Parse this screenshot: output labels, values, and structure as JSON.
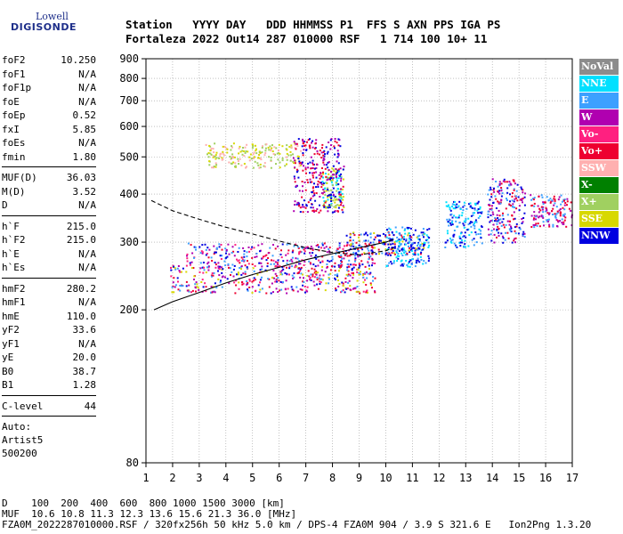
{
  "logo": {
    "line1": "Lowell",
    "line2": "DIGISONDE"
  },
  "header": {
    "labels": "Station   YYYY DAY   DDD HHMMSS P1  FFS S AXN PPS IGA PS",
    "values": "Fortaleza 2022 Out14 287 010000 RSF   1 714 100 10+ 11"
  },
  "params": [
    {
      "type": "row",
      "name": "foF2",
      "value": "10.250"
    },
    {
      "type": "row",
      "name": "foF1",
      "value": "N/A"
    },
    {
      "type": "row",
      "name": "foF1p",
      "value": "N/A"
    },
    {
      "type": "row",
      "name": "foE",
      "value": "N/A"
    },
    {
      "type": "row",
      "name": "foEp",
      "value": "0.52"
    },
    {
      "type": "row",
      "name": "fxI",
      "value": "5.85"
    },
    {
      "type": "row",
      "name": "foEs",
      "value": "N/A"
    },
    {
      "type": "row",
      "name": "fmin",
      "value": "1.80"
    },
    {
      "type": "sep"
    },
    {
      "type": "row",
      "name": "MUF(D)",
      "value": "36.03"
    },
    {
      "type": "row",
      "name": "M(D)",
      "value": "3.52"
    },
    {
      "type": "row",
      "name": "D",
      "value": "N/A"
    },
    {
      "type": "sep"
    },
    {
      "type": "row",
      "name": "h`F",
      "value": "215.0"
    },
    {
      "type": "row",
      "name": "h`F2",
      "value": "215.0"
    },
    {
      "type": "row",
      "name": "h`E",
      "value": "N/A"
    },
    {
      "type": "row",
      "name": "h`Es",
      "value": "N/A"
    },
    {
      "type": "sep"
    },
    {
      "type": "row",
      "name": "hmF2",
      "value": "280.2"
    },
    {
      "type": "row",
      "name": "hmF1",
      "value": "N/A"
    },
    {
      "type": "row",
      "name": "hmE",
      "value": "110.0"
    },
    {
      "type": "row",
      "name": "yF2",
      "value": "33.6"
    },
    {
      "type": "row",
      "name": "yF1",
      "value": "N/A"
    },
    {
      "type": "row",
      "name": "yE",
      "value": "20.0"
    },
    {
      "type": "row",
      "name": "B0",
      "value": "38.7"
    },
    {
      "type": "row",
      "name": "B1",
      "value": "1.28"
    },
    {
      "type": "sep"
    },
    {
      "type": "row",
      "name": "C-level",
      "value": "44"
    },
    {
      "type": "sep"
    },
    {
      "type": "text",
      "value": "Auto:"
    },
    {
      "type": "text",
      "value": "Artist5"
    },
    {
      "type": "text",
      "value": "500200"
    }
  ],
  "legend": [
    {
      "label": "NoVal",
      "color": "#8c8c8c"
    },
    {
      "label": "NNE",
      "color": "#00e0ff"
    },
    {
      "label": "E",
      "color": "#3ca0ff"
    },
    {
      "label": "W",
      "color": "#b000b0"
    },
    {
      "label": "Vo-",
      "color": "#ff2080"
    },
    {
      "label": "Vo+",
      "color": "#ee0030"
    },
    {
      "label": "SSW",
      "color": "#ffb0b0"
    },
    {
      "label": "X-",
      "color": "#008000"
    },
    {
      "label": "X+",
      "color": "#a0d060"
    },
    {
      "label": "SSE",
      "color": "#d8d800"
    },
    {
      "label": "NNW",
      "color": "#0000e0"
    }
  ],
  "footer": {
    "line1": "D    100  200  400  600  800 1000 1500 3000 [km]",
    "line2": "MUF  10.6 10.8 11.3 12.3 13.6 15.6 21.3 36.0 [MHz]",
    "line3": "FZA0M_2022287010000.RSF / 320fx256h 50 kHz 5.0 km / DPS-4 FZA0M 904 / 3.9 S 321.6 E   Ion2Png 1.3.20"
  },
  "chart_data": {
    "type": "scatter",
    "title": "",
    "xlabel": "",
    "ylabel": "",
    "x_ticks": [
      1,
      2,
      3,
      4,
      5,
      6,
      7,
      8,
      9,
      10,
      11,
      12,
      13,
      14,
      15,
      16,
      17
    ],
    "y_ticks": [
      80,
      200,
      300,
      400,
      500,
      600,
      700,
      800,
      900
    ],
    "xlim": [
      1,
      17
    ],
    "ylim": [
      80,
      900
    ],
    "y_scale": "log",
    "grid": true,
    "traces": [
      {
        "style": "solid",
        "color": "#000000",
        "points": [
          [
            1.3,
            200
          ],
          [
            2,
            210
          ],
          [
            3,
            222
          ],
          [
            4,
            235
          ],
          [
            5,
            247
          ],
          [
            6,
            258
          ],
          [
            7,
            270
          ],
          [
            8,
            280
          ],
          [
            9,
            290
          ],
          [
            10,
            300
          ],
          [
            10.3,
            305
          ]
        ]
      },
      {
        "style": "dashed",
        "color": "#000000",
        "points": [
          [
            1.2,
            385
          ],
          [
            2,
            362
          ],
          [
            3,
            344
          ],
          [
            4,
            328
          ],
          [
            5,
            315
          ],
          [
            6,
            302
          ],
          [
            7,
            290
          ],
          [
            8,
            282
          ],
          [
            9,
            278
          ],
          [
            10,
            285
          ],
          [
            10.3,
            290
          ]
        ]
      }
    ],
    "echo_clusters": [
      {
        "x": [
          1.9,
          9.6
        ],
        "y": [
          222,
          262
        ],
        "colors": [
          "#ee0030",
          "#ff2080",
          "#b000b0",
          "#3ca0ff",
          "#d8d800",
          "#0000e0"
        ]
      },
      {
        "x": [
          2.5,
          9.6
        ],
        "y": [
          258,
          300
        ],
        "colors": [
          "#ee0030",
          "#b000b0",
          "#ff2080",
          "#0000e0",
          "#3ca0ff"
        ]
      },
      {
        "x": [
          3.2,
          6.8
        ],
        "y": [
          470,
          545
        ],
        "colors": [
          "#d8d800",
          "#ffb0b0",
          "#a0d060"
        ]
      },
      {
        "x": [
          7.6,
          8.4
        ],
        "y": [
          370,
          470
        ],
        "colors": [
          "#00e0ff",
          "#a0d060",
          "#d8d800"
        ]
      },
      {
        "x": [
          6.5,
          8.4
        ],
        "y": [
          360,
          560
        ],
        "colors": [
          "#ee0030",
          "#b000b0",
          "#0000e0"
        ]
      },
      {
        "x": [
          8.5,
          11.4
        ],
        "y": [
          280,
          320
        ],
        "colors": [
          "#d8d800",
          "#3ca0ff",
          "#0000e0",
          "#ee0030"
        ]
      },
      {
        "x": [
          10.0,
          11.6
        ],
        "y": [
          260,
          330
        ],
        "colors": [
          "#3ca0ff",
          "#00e0ff",
          "#0000e0"
        ]
      },
      {
        "x": [
          12.2,
          13.6
        ],
        "y": [
          290,
          385
        ],
        "colors": [
          "#3ca0ff",
          "#0000e0",
          "#00e0ff"
        ]
      },
      {
        "x": [
          13.8,
          15.2
        ],
        "y": [
          300,
          440
        ],
        "colors": [
          "#0000e0",
          "#3ca0ff",
          "#b000b0",
          "#ee0030"
        ]
      },
      {
        "x": [
          15.4,
          17.0
        ],
        "y": [
          330,
          400
        ],
        "colors": [
          "#3ca0ff",
          "#b000b0",
          "#ee0030"
        ]
      }
    ]
  }
}
